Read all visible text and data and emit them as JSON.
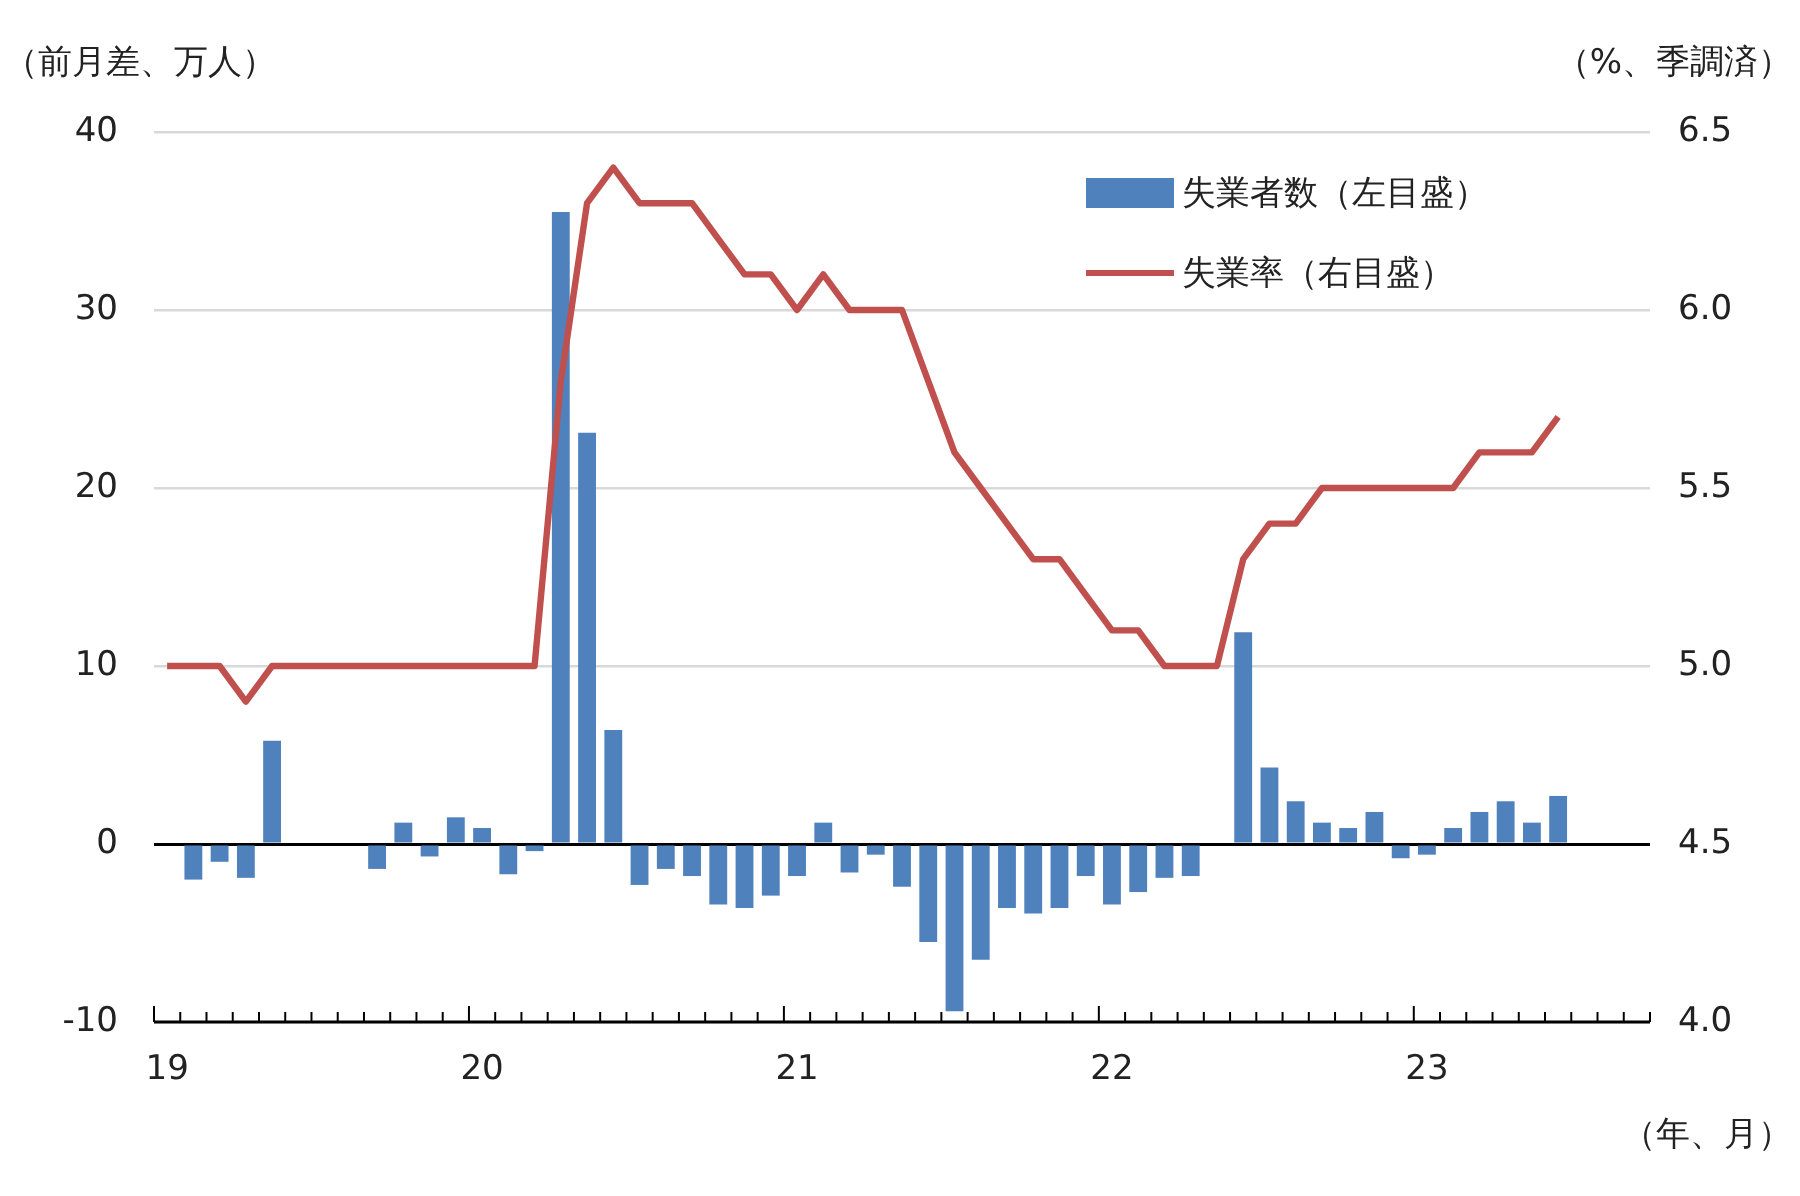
{
  "chart_data": {
    "type": "bar",
    "ylabel": "（前月差、万人）",
    "y2label": "（%、季調済）",
    "xlabel": "（年、月）",
    "categories": [
      "19",
      null,
      null,
      null,
      null,
      null,
      null,
      null,
      null,
      null,
      null,
      null,
      "20",
      null,
      null,
      null,
      null,
      null,
      null,
      null,
      null,
      null,
      null,
      null,
      "21",
      null,
      null,
      null,
      null,
      null,
      null,
      null,
      null,
      null,
      null,
      null,
      "22",
      null,
      null,
      null,
      null,
      null,
      null,
      null,
      null,
      null,
      null,
      null,
      "23",
      null,
      null,
      null,
      null,
      null,
      null,
      null,
      null
    ],
    "series": [
      {
        "name": "失業者数（左目盛）",
        "color": "#4f81bd",
        "values": [
          0,
          -2.0,
          -1.0,
          -1.9,
          5.8,
          0,
          0,
          0,
          -1.4,
          1.2,
          -0.7,
          1.5,
          0.9,
          -1.7,
          -0.4,
          35.5,
          23.1,
          6.4,
          -2.3,
          -1.4,
          -1.8,
          -3.4,
          -3.6,
          -2.9,
          -1.8,
          1.2,
          -1.6,
          -0.6,
          -2.4,
          -5.5,
          -9.4,
          -6.5,
          -3.6,
          -3.9,
          -3.6,
          -1.8,
          -3.4,
          -2.7,
          -1.9,
          -1.8,
          0,
          11.9,
          4.3,
          2.4,
          1.2,
          0.9,
          1.8,
          -0.8,
          -0.6,
          0.9,
          1.8,
          2.4,
          1.2,
          2.7,
          null,
          null,
          null
        ]
      },
      {
        "name": "失業率（右目盛）",
        "type": "line",
        "axis": "y2",
        "color": "#c0504d",
        "values": [
          5.0,
          5.0,
          5.0,
          4.9,
          5.0,
          5.0,
          5.0,
          5.0,
          5.0,
          5.0,
          5.0,
          5.0,
          5.0,
          5.0,
          5.0,
          5.8,
          6.3,
          6.4,
          6.3,
          6.3,
          6.3,
          6.2,
          6.1,
          6.1,
          6.0,
          6.1,
          6.0,
          6.0,
          6.0,
          5.8,
          5.6,
          5.5,
          5.4,
          5.3,
          5.3,
          5.2,
          5.1,
          5.1,
          5.0,
          5.0,
          5.0,
          5.3,
          5.4,
          5.4,
          5.5,
          5.5,
          5.5,
          5.5,
          5.5,
          5.5,
          5.6,
          5.6,
          5.6,
          5.7,
          null,
          null,
          null
        ]
      }
    ],
    "ylim": [
      -10,
      40
    ],
    "yticks": [
      -10,
      0,
      10,
      20,
      30,
      40
    ],
    "y2lim": [
      4.0,
      6.5
    ],
    "y2ticks": [
      {
        "value": 4,
        "label": "4.0"
      },
      4.5,
      {
        "value": 5,
        "label": "5.0"
      },
      5.5,
      {
        "value": 6,
        "label": "6.0"
      },
      6.5
    ],
    "grid": "y",
    "legend": "top right",
    "marker": "none",
    "line_style": "solid"
  }
}
